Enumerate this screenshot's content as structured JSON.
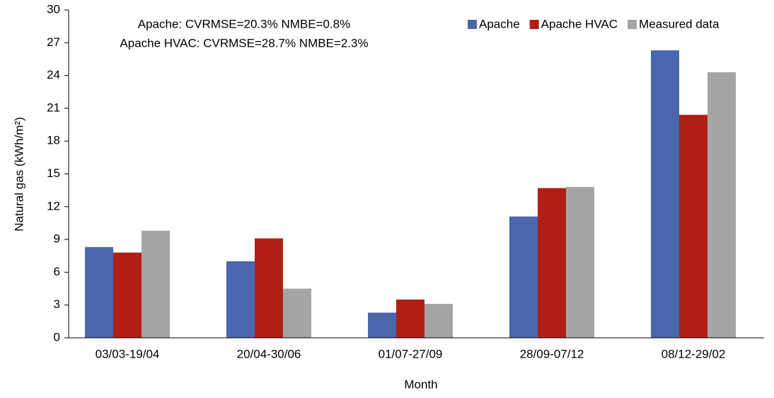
{
  "chart_data": {
    "type": "bar",
    "ylabel": "Natural gas (kWh/m²)",
    "xlabel": "Month",
    "annotations": [
      "Apache: CVRMSE=20.3% NMBE=0.8%",
      "Apache HVAC: CVRMSE=28.7% NMBE=2.3%"
    ],
    "categories": [
      "03/03-19/04",
      "20/04-30/06",
      "01/07-27/09",
      "28/09-07/12",
      "08/12-29/02"
    ],
    "series": [
      {
        "name": "Apache",
        "color": "#4a66ad",
        "values": [
          8.3,
          7.0,
          2.3,
          11.1,
          26.3
        ]
      },
      {
        "name": "Apache HVAC",
        "color": "#b01f16",
        "values": [
          7.8,
          9.1,
          3.5,
          13.7,
          20.4
        ]
      },
      {
        "name": "Measured data",
        "color": "#a5a5a5",
        "values": [
          9.8,
          4.5,
          3.1,
          13.8,
          24.3
        ]
      }
    ],
    "ylim": [
      0,
      30
    ],
    "yticks": [
      0,
      3,
      6,
      9,
      12,
      15,
      18,
      21,
      24,
      27,
      30
    ],
    "grid": false,
    "legend": "top-right"
  }
}
